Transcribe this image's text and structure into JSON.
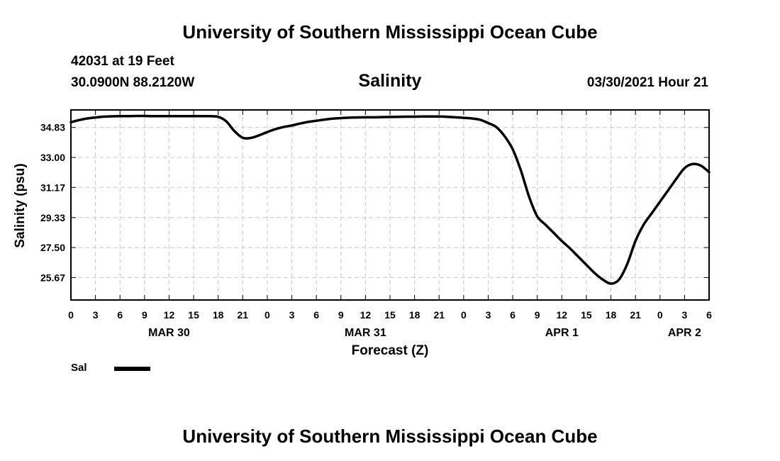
{
  "header": {
    "site_title": "University of Southern Mississippi Ocean Cube",
    "station": "42031 at 19 Feet",
    "coordinates": "30.0900N  88.2120W",
    "datetime": "03/30/2021 Hour 21"
  },
  "footer": {
    "site_title": "University of Southern Mississippi Ocean Cube"
  },
  "legend": {
    "label": "Sal"
  },
  "chart_data": {
    "type": "line",
    "title": "Salinity",
    "xlabel": "Forecast (Z)",
    "ylabel": "Salinity (psu)",
    "xlim": [
      0,
      78
    ],
    "ylim": [
      24.3,
      35.9
    ],
    "grid": true,
    "y_ticks": [
      25.67,
      27.5,
      29.33,
      31.17,
      33.0,
      34.83
    ],
    "y_tick_labels": [
      "25.67",
      "27.50",
      "29.33",
      "31.17",
      "33.00",
      "34.83"
    ],
    "x_ticks": [
      0,
      3,
      6,
      9,
      12,
      15,
      18,
      21,
      24,
      27,
      30,
      33,
      36,
      39,
      42,
      45,
      48,
      51,
      54,
      57,
      60,
      63,
      66,
      69,
      72,
      75,
      78
    ],
    "x_tick_labels": [
      "0",
      "3",
      "6",
      "9",
      "12",
      "15",
      "18",
      "21",
      "0",
      "3",
      "6",
      "9",
      "12",
      "15",
      "18",
      "21",
      "0",
      "3",
      "6",
      "9",
      "12",
      "15",
      "18",
      "21",
      "0",
      "3",
      "6"
    ],
    "date_labels": [
      {
        "x": 12,
        "label": "MAR 30"
      },
      {
        "x": 36,
        "label": "MAR 31"
      },
      {
        "x": 60,
        "label": "APR 1"
      },
      {
        "x": 75,
        "label": "APR 2"
      }
    ],
    "series": [
      {
        "name": "Sal",
        "color": "#000000",
        "x": [
          0,
          1,
          2,
          3,
          4,
          5,
          6,
          7,
          8,
          9,
          10,
          11,
          12,
          13,
          14,
          15,
          16,
          17,
          18,
          19,
          20,
          21,
          22,
          23,
          24,
          25,
          26,
          27,
          28,
          29,
          30,
          31,
          32,
          33,
          34,
          35,
          36,
          37,
          38,
          39,
          40,
          41,
          42,
          43,
          44,
          45,
          46,
          47,
          48,
          49,
          50,
          51,
          52,
          53,
          54,
          55,
          56,
          57,
          58,
          59,
          60,
          61,
          62,
          63,
          64,
          65,
          66,
          67,
          68,
          69,
          70,
          71,
          72,
          73,
          74,
          75,
          76,
          77,
          78
        ],
        "values": [
          35.15,
          35.28,
          35.38,
          35.44,
          35.49,
          35.51,
          35.52,
          35.52,
          35.53,
          35.53,
          35.52,
          35.52,
          35.52,
          35.52,
          35.52,
          35.52,
          35.52,
          35.52,
          35.48,
          35.2,
          34.6,
          34.2,
          34.19,
          34.35,
          34.55,
          34.73,
          34.86,
          34.95,
          35.07,
          35.17,
          35.24,
          35.31,
          35.37,
          35.4,
          35.43,
          35.44,
          35.45,
          35.45,
          35.46,
          35.47,
          35.48,
          35.49,
          35.49,
          35.5,
          35.5,
          35.5,
          35.48,
          35.45,
          35.42,
          35.38,
          35.3,
          35.1,
          34.85,
          34.3,
          33.5,
          32.2,
          30.6,
          29.4,
          28.9,
          28.4,
          27.9,
          27.45,
          26.95,
          26.45,
          25.95,
          25.55,
          25.3,
          25.55,
          26.5,
          27.9,
          28.9,
          29.6,
          30.3,
          31.0,
          31.7,
          32.35,
          32.6,
          32.5,
          32.1
        ],
        "stroke_width": 3.5
      }
    ]
  }
}
